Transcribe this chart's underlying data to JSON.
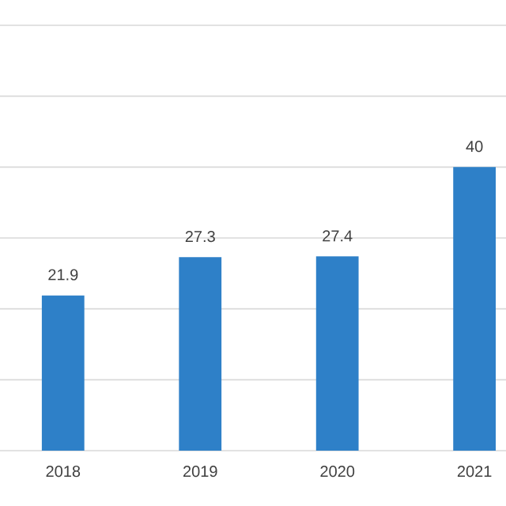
{
  "chart_data": {
    "type": "bar",
    "categories": [
      "2018",
      "2019",
      "2020",
      "2021"
    ],
    "values": [
      21.9,
      27.3,
      27.4,
      40
    ],
    "color": "#2e80c8",
    "data_labels": true,
    "ylim": [
      0,
      60
    ],
    "yticks": [
      {
        "value": 0,
        "label": null
      },
      {
        "value": 10,
        "label": null
      },
      {
        "value": 20,
        "label": null
      },
      {
        "value": 30,
        "label": null
      },
      {
        "value": 40,
        "label": null
      },
      {
        "value": 50,
        "label": null
      },
      {
        "value": 60,
        "label": null
      }
    ],
    "grid": "y",
    "tick_labels": "x"
  }
}
